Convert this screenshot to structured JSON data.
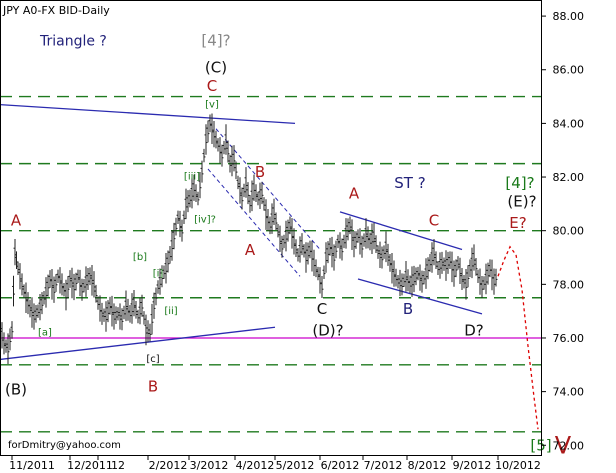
{
  "header": {
    "title": "JPY A0-FX BID-Daily"
  },
  "footer": {
    "email": "forDmitry@yahoo.com"
  },
  "colors": {
    "grid_dash": "#1f7a1f",
    "trendline": "#2b2bb0",
    "support": "#cc00cc",
    "projection": "#dd0000",
    "wave_red": "#aa1a1a",
    "wave_green": "#1a7a1a",
    "wave_gray": "#888888",
    "wave_blue": "#22227a",
    "price": "#222222"
  },
  "chart_data": {
    "type": "ohlc",
    "title": "JPY A0-FX BID-Daily",
    "ylim": [
      71.6,
      88.6
    ],
    "y_ticks": [
      "72.00",
      "74.00",
      "76.00",
      "78.00",
      "80.00",
      "82.00",
      "84.00",
      "86.00",
      "88.00"
    ],
    "x_ticks": [
      "11/2011",
      "12/2011",
      "12",
      "2/2012",
      "3/2012",
      "4/2012",
      "5/2012",
      "6/2012",
      "7/2012",
      "8/2012",
      "9/2012",
      "10/2012"
    ],
    "green_dashed_levels": [
      85.0,
      82.5,
      80.0,
      77.5,
      75.0,
      72.5
    ],
    "support_level": 76.0,
    "price_path": [
      [
        0,
        76.4
      ],
      [
        4,
        75.8
      ],
      [
        8,
        75.6
      ],
      [
        12,
        76.3
      ],
      [
        15,
        79.2
      ],
      [
        18,
        78.6
      ],
      [
        22,
        78.0
      ],
      [
        26,
        77.5
      ],
      [
        30,
        77.1
      ],
      [
        34,
        76.8
      ],
      [
        38,
        77.0
      ],
      [
        42,
        77.3
      ],
      [
        46,
        77.7
      ],
      [
        50,
        78.2
      ],
      [
        54,
        77.8
      ],
      [
        58,
        78.3
      ],
      [
        62,
        78.0
      ],
      [
        66,
        77.6
      ],
      [
        70,
        78.2
      ],
      [
        74,
        77.9
      ],
      [
        78,
        78.3
      ],
      [
        82,
        77.8
      ],
      [
        86,
        78.1
      ],
      [
        90,
        78.3
      ],
      [
        94,
        78.0
      ],
      [
        98,
        77.3
      ],
      [
        102,
        76.9
      ],
      [
        106,
        76.8
      ],
      [
        110,
        77.2
      ],
      [
        114,
        76.8
      ],
      [
        118,
        76.9
      ],
      [
        122,
        76.7
      ],
      [
        126,
        77.2
      ],
      [
        130,
        76.9
      ],
      [
        134,
        77.3
      ],
      [
        138,
        76.8
      ],
      [
        142,
        77.2
      ],
      [
        146,
        76.3
      ],
      [
        150,
        76.2
      ],
      [
        154,
        77.2
      ],
      [
        158,
        77.9
      ],
      [
        162,
        78.3
      ],
      [
        166,
        78.6
      ],
      [
        170,
        79.1
      ],
      [
        174,
        79.8
      ],
      [
        178,
        80.5
      ],
      [
        182,
        80.0
      ],
      [
        186,
        81.0
      ],
      [
        190,
        81.2
      ],
      [
        194,
        81.6
      ],
      [
        198,
        81.2
      ],
      [
        202,
        82.2
      ],
      [
        206,
        83.4
      ],
      [
        210,
        84.0
      ],
      [
        214,
        83.6
      ],
      [
        218,
        83.2
      ],
      [
        222,
        82.8
      ],
      [
        226,
        83.4
      ],
      [
        230,
        82.5
      ],
      [
        234,
        82.7
      ],
      [
        238,
        81.8
      ],
      [
        242,
        81.2
      ],
      [
        246,
        81.8
      ],
      [
        250,
        81.0
      ],
      [
        254,
        81.6
      ],
      [
        258,
        81.2
      ],
      [
        262,
        81.4
      ],
      [
        266,
        80.6
      ],
      [
        270,
        80.2
      ],
      [
        274,
        80.7
      ],
      [
        278,
        80.0
      ],
      [
        282,
        79.4
      ],
      [
        286,
        79.8
      ],
      [
        290,
        80.2
      ],
      [
        294,
        79.6
      ],
      [
        298,
        79.1
      ],
      [
        302,
        79.5
      ],
      [
        306,
        79.0
      ],
      [
        310,
        79.3
      ],
      [
        314,
        78.8
      ],
      [
        318,
        78.4
      ],
      [
        322,
        77.9
      ],
      [
        326,
        79.0
      ],
      [
        330,
        79.4
      ],
      [
        334,
        79.0
      ],
      [
        338,
        79.6
      ],
      [
        342,
        79.3
      ],
      [
        346,
        79.9
      ],
      [
        350,
        80.2
      ],
      [
        354,
        79.5
      ],
      [
        358,
        79.8
      ],
      [
        362,
        79.4
      ],
      [
        366,
        79.9
      ],
      [
        370,
        79.6
      ],
      [
        374,
        79.8
      ],
      [
        378,
        79.2
      ],
      [
        382,
        79.0
      ],
      [
        386,
        79.4
      ],
      [
        390,
        78.8
      ],
      [
        394,
        78.4
      ],
      [
        398,
        78.1
      ],
      [
        402,
        78.0
      ],
      [
        406,
        78.3
      ],
      [
        410,
        78.0
      ],
      [
        414,
        78.2
      ],
      [
        418,
        78.4
      ],
      [
        422,
        78.1
      ],
      [
        426,
        78.4
      ],
      [
        430,
        78.8
      ],
      [
        434,
        79.2
      ],
      [
        438,
        78.6
      ],
      [
        442,
        78.8
      ],
      [
        446,
        78.7
      ],
      [
        450,
        78.9
      ],
      [
        454,
        78.4
      ],
      [
        458,
        78.8
      ],
      [
        462,
        78.2
      ],
      [
        466,
        78.0
      ],
      [
        470,
        78.6
      ],
      [
        474,
        79.0
      ],
      [
        478,
        78.3
      ],
      [
        482,
        77.9
      ],
      [
        486,
        78.2
      ],
      [
        490,
        78.6
      ],
      [
        494,
        78.1
      ],
      [
        498,
        78.4
      ]
    ],
    "projection_path": [
      [
        498,
        78.3
      ],
      [
        504,
        78.9
      ],
      [
        510,
        79.4
      ],
      [
        516,
        79.1
      ],
      [
        522,
        77.8
      ],
      [
        528,
        75.7
      ],
      [
        534,
        73.8
      ],
      [
        538,
        72.6
      ]
    ],
    "trendlines": [
      {
        "id": "triangle-upper",
        "kind": "trend",
        "p1": [
          0,
          84.7
        ],
        "p2": [
          295,
          84.0
        ]
      },
      {
        "id": "triangle-lower",
        "kind": "trend",
        "p1": [
          0,
          75.2
        ],
        "p2": [
          275,
          76.4
        ]
      },
      {
        "id": "st-upper",
        "kind": "trend",
        "p1": [
          340,
          80.7
        ],
        "p2": [
          462,
          79.3
        ]
      },
      {
        "id": "st-lower",
        "kind": "trend",
        "p1": [
          358,
          78.2
        ],
        "p2": [
          482,
          76.9
        ]
      },
      {
        "id": "channel-upper",
        "kind": "dashed",
        "p1": [
          216,
          83.8
        ],
        "p2": [
          320,
          79.3
        ]
      },
      {
        "id": "channel-lower",
        "kind": "dashed",
        "p1": [
          208,
          82.3
        ],
        "p2": [
          300,
          78.3
        ]
      },
      {
        "id": "support-line",
        "kind": "support",
        "p1": [
          0,
          76.0
        ],
        "p2": [
          541,
          76.0
        ]
      }
    ],
    "annotations": [
      {
        "id": "triangle-label",
        "text": "Triangle ?",
        "x": 40,
        "y": 86.9,
        "color": "blue",
        "size": 14,
        "anchor": "start"
      },
      {
        "id": "wave-4-gray",
        "text": "[4]?",
        "x": 216,
        "y": 86.9,
        "color": "gray",
        "size": 15,
        "anchor": "middle"
      },
      {
        "id": "wave-C-paren",
        "text": "(C)",
        "x": 216,
        "y": 85.9,
        "color": "black",
        "size": 15,
        "anchor": "middle"
      },
      {
        "id": "wave-C-top",
        "text": "C",
        "x": 212,
        "y": 85.2,
        "color": "red",
        "size": 15,
        "anchor": "middle"
      },
      {
        "id": "wave-v-bracket",
        "text": "[v]",
        "x": 212,
        "y": 84.6,
        "color": "green",
        "size": 10,
        "anchor": "middle"
      },
      {
        "id": "wave-iii-bracket",
        "text": "[iii]",
        "x": 192,
        "y": 81.9,
        "color": "green",
        "size": 10,
        "anchor": "middle"
      },
      {
        "id": "wave-iv-bracket",
        "text": "[iv]?",
        "x": 205,
        "y": 80.3,
        "color": "green",
        "size": 10,
        "anchor": "middle"
      },
      {
        "id": "wave-b-bracket",
        "text": "[b]",
        "x": 140,
        "y": 78.9,
        "color": "green",
        "size": 10,
        "anchor": "middle"
      },
      {
        "id": "wave-i-bracket",
        "text": "[i]",
        "x": 158,
        "y": 78.3,
        "color": "green",
        "size": 10,
        "anchor": "middle"
      },
      {
        "id": "wave-ii-bracket",
        "text": "[ii]",
        "x": 171,
        "y": 76.9,
        "color": "green",
        "size": 10,
        "anchor": "middle"
      },
      {
        "id": "wave-a-bracket",
        "text": "[a]",
        "x": 45,
        "y": 76.1,
        "color": "green",
        "size": 10,
        "anchor": "middle"
      },
      {
        "id": "wave-c-bracket",
        "text": "[c]",
        "x": 153,
        "y": 75.1,
        "color": "black",
        "size": 10,
        "anchor": "middle"
      },
      {
        "id": "wave-A-left",
        "text": "A",
        "x": 16,
        "y": 80.2,
        "color": "red",
        "size": 15,
        "anchor": "middle"
      },
      {
        "id": "wave-B-paren",
        "text": "(B)",
        "x": 16,
        "y": 73.9,
        "color": "black",
        "size": 15,
        "anchor": "middle"
      },
      {
        "id": "wave-B-lower",
        "text": "B",
        "x": 153,
        "y": 74.0,
        "color": "red",
        "size": 15,
        "anchor": "middle"
      },
      {
        "id": "wave-B-mid",
        "text": "B",
        "x": 260,
        "y": 82.0,
        "color": "red",
        "size": 15,
        "anchor": "middle"
      },
      {
        "id": "wave-A-mid",
        "text": "A",
        "x": 250,
        "y": 79.1,
        "color": "red",
        "size": 15,
        "anchor": "middle"
      },
      {
        "id": "wave-C-mid",
        "text": "C",
        "x": 322,
        "y": 76.9,
        "color": "black",
        "size": 15,
        "anchor": "middle"
      },
      {
        "id": "wave-D-paren",
        "text": "(D)?",
        "x": 328,
        "y": 76.1,
        "color": "black",
        "size": 15,
        "anchor": "middle"
      },
      {
        "id": "wave-A-right",
        "text": "A",
        "x": 354,
        "y": 81.2,
        "color": "red",
        "size": 15,
        "anchor": "middle"
      },
      {
        "id": "st-label",
        "text": "ST ?",
        "x": 410,
        "y": 81.6,
        "color": "blue",
        "size": 15,
        "anchor": "middle"
      },
      {
        "id": "wave-C-right",
        "text": "C",
        "x": 434,
        "y": 80.2,
        "color": "red",
        "size": 15,
        "anchor": "middle"
      },
      {
        "id": "wave-B-right",
        "text": "B",
        "x": 408,
        "y": 76.9,
        "color": "blue",
        "size": 15,
        "anchor": "middle"
      },
      {
        "id": "wave-D-right",
        "text": "D?",
        "x": 474,
        "y": 76.1,
        "color": "black",
        "size": 15,
        "anchor": "middle"
      },
      {
        "id": "wave-4-green",
        "text": "[4]?",
        "x": 520,
        "y": 81.6,
        "color": "green",
        "size": 15,
        "anchor": "middle"
      },
      {
        "id": "wave-E-paren",
        "text": "(E)?",
        "x": 522,
        "y": 80.9,
        "color": "black",
        "size": 15,
        "anchor": "middle"
      },
      {
        "id": "wave-E-red",
        "text": "E?",
        "x": 518,
        "y": 80.1,
        "color": "red",
        "size": 15,
        "anchor": "middle"
      },
      {
        "id": "wave-5-green",
        "text": "[5]",
        "x": 541,
        "y": 71.8,
        "color": "green",
        "size": 15,
        "anchor": "middle"
      },
      {
        "id": "wave-V-red",
        "text": "V",
        "x": 563,
        "y": 71.7,
        "color": "red",
        "size": 24,
        "anchor": "middle"
      }
    ]
  }
}
